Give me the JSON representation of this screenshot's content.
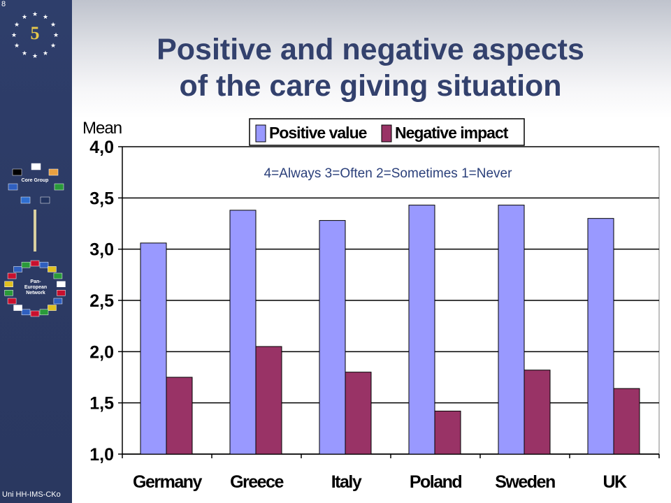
{
  "slide": {
    "number": "8",
    "footer": "Uni HH-IMS-CKo",
    "sidebar_core_label": "Core Group",
    "sidebar_network_label": "Pan- European Network",
    "title_line1": "Positive and negative aspects",
    "title_line2": "of the care giving situation"
  },
  "colors": {
    "sidebar": "#2c3a64",
    "title": "#33416d",
    "positive": "#9999ff",
    "negative": "#993366",
    "note": "#2a3f7a"
  },
  "chart_data": {
    "type": "bar",
    "title": "",
    "ylabel": "Mean",
    "xlabel": "",
    "note": "4=Always 3=Often 2=Sometimes 1=Never",
    "categories": [
      "Germany",
      "Greece",
      "Italy",
      "Poland",
      "Sweden",
      "UK"
    ],
    "series": [
      {
        "name": "Positive value",
        "values": [
          3.06,
          3.38,
          3.28,
          3.43,
          3.43,
          3.3
        ]
      },
      {
        "name": "Negative impact",
        "values": [
          1.75,
          2.05,
          1.8,
          1.42,
          1.82,
          1.64
        ]
      }
    ],
    "ylim": [
      1.0,
      4.0
    ],
    "yticks": [
      "1,0",
      "1,5",
      "2,0",
      "2,5",
      "3,0",
      "3,5",
      "4,0"
    ],
    "grid": true,
    "legend": "top"
  }
}
